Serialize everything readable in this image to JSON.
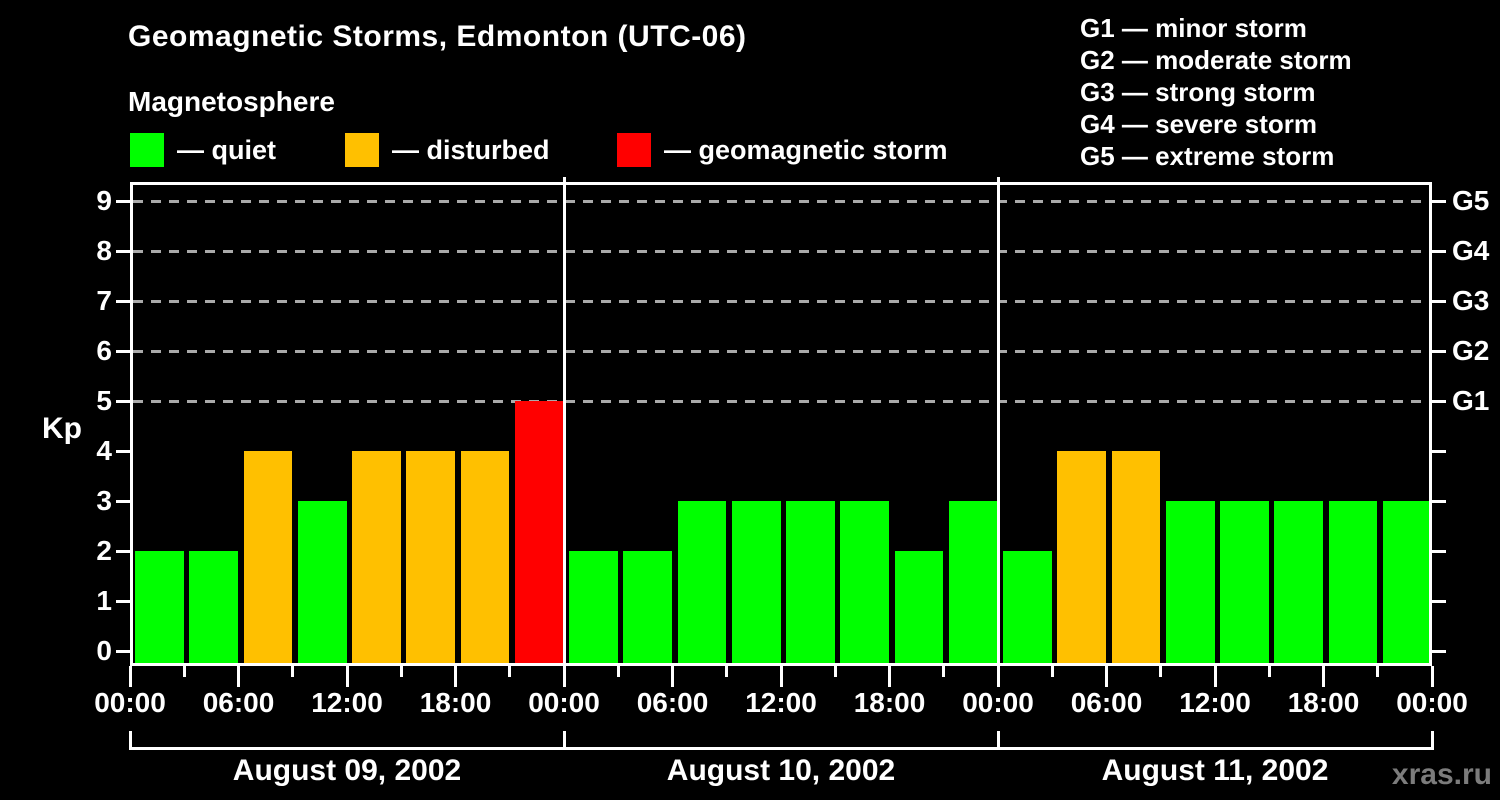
{
  "header": {
    "title": "Geomagnetic Storms, Edmonton (UTC-06)",
    "subtitle": "Magnetosphere"
  },
  "legend": {
    "items": [
      {
        "status": "quiet",
        "label": "— quiet",
        "color": "#00ff00"
      },
      {
        "status": "disturbed",
        "label": "— disturbed",
        "color": "#ffc000"
      },
      {
        "status": "storm",
        "label": "— geomagnetic storm",
        "color": "#ff0000"
      }
    ]
  },
  "g_legend": {
    "items": [
      "G1 — minor storm",
      "G2 — moderate storm",
      "G3 — strong storm",
      "G4 — severe storm",
      "G5 — extreme storm"
    ]
  },
  "watermark": "xras.ru",
  "chart_data": {
    "type": "bar",
    "title": "Geomagnetic Storms, Edmonton (UTC-06)",
    "subtitle": "Magnetosphere",
    "ylabel": "Kp",
    "ylim": [
      0,
      9
    ],
    "y_ticks": [
      0,
      1,
      2,
      3,
      4,
      5,
      6,
      7,
      8,
      9
    ],
    "gridlines_at": [
      5,
      6,
      7,
      8,
      9
    ],
    "grid_style": "dashed gray horizontal lines at storm levels",
    "right_axis_labels": [
      {
        "kp": 5,
        "label": "G1"
      },
      {
        "kp": 6,
        "label": "G2"
      },
      {
        "kp": 7,
        "label": "G3"
      },
      {
        "kp": 8,
        "label": "G4"
      },
      {
        "kp": 9,
        "label": "G5"
      }
    ],
    "bar_interval_hours": 3,
    "x_major_tick_labels": [
      "00:00",
      "06:00",
      "12:00",
      "18:00"
    ],
    "x_axis_end_label": "00:00",
    "status_colors": {
      "quiet": "#00ff00",
      "disturbed": "#ffc000",
      "storm": "#ff0000"
    },
    "days": [
      {
        "date": "August 09, 2002",
        "kp_values": [
          2,
          2,
          4,
          3,
          4,
          4,
          4,
          5
        ],
        "statuses": [
          "quiet",
          "quiet",
          "disturbed",
          "quiet",
          "disturbed",
          "disturbed",
          "disturbed",
          "storm"
        ]
      },
      {
        "date": "August 10, 2002",
        "kp_values": [
          2,
          2,
          3,
          3,
          3,
          3,
          2,
          3
        ],
        "statuses": [
          "quiet",
          "quiet",
          "quiet",
          "quiet",
          "quiet",
          "quiet",
          "quiet",
          "quiet"
        ]
      },
      {
        "date": "August 11, 2002",
        "kp_values": [
          2,
          4,
          4,
          3,
          3,
          3,
          3,
          3
        ],
        "statuses": [
          "quiet",
          "disturbed",
          "disturbed",
          "quiet",
          "quiet",
          "quiet",
          "quiet",
          "quiet"
        ]
      }
    ]
  }
}
